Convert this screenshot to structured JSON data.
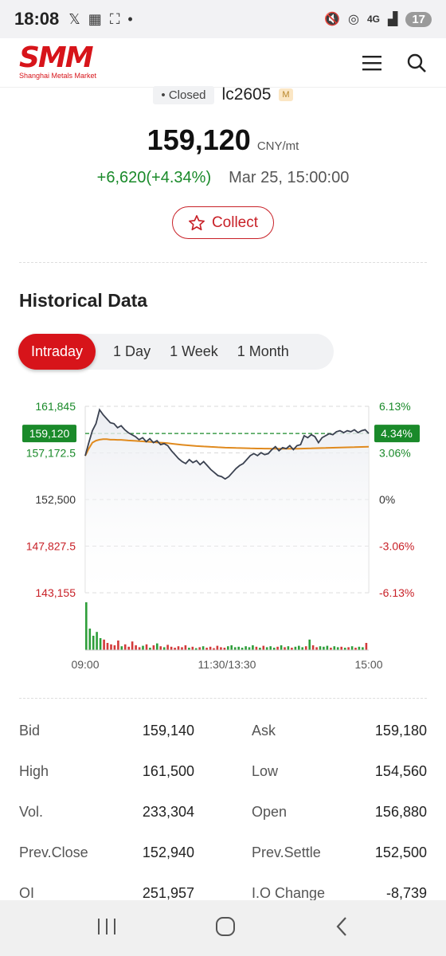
{
  "status": {
    "time": "18:08",
    "battery": "17",
    "network": "4G"
  },
  "brand": {
    "logo": "SMM",
    "tagline": "Shanghai Metals Market"
  },
  "quote": {
    "status": "Closed",
    "symbol": "lc2605",
    "tag": "M",
    "price": "159,120",
    "unit": "CNY/mt",
    "change": "+6,620(+4.34%)",
    "timestamp": "Mar 25, 15:00:00",
    "collect_label": "Collect"
  },
  "section": {
    "title": "Historical Data"
  },
  "tabs": [
    {
      "label": "Intraday",
      "active": true
    },
    {
      "label": "1 Day",
      "active": false
    },
    {
      "label": "1 Week",
      "active": false
    },
    {
      "label": "1 Month",
      "active": false
    }
  ],
  "chart_data": {
    "type": "line",
    "y_labels_left": [
      "161,845",
      "157,172.5",
      "152,500",
      "147,827.5",
      "143,155"
    ],
    "y_labels_right": [
      "6.13%",
      "3.06%",
      "0%",
      "-3.06%",
      "-6.13%"
    ],
    "current_price_label": "159,120",
    "current_pct_label": "4.34%",
    "x_labels": [
      "09:00",
      "11:30/13:30",
      "15:00"
    ],
    "ylim": [
      143155,
      161845
    ],
    "prev_settle": 152500,
    "current": 159120,
    "price_series": [
      156880,
      158200,
      159400,
      160100,
      161500,
      161000,
      160600,
      160200,
      160100,
      159700,
      159900,
      159500,
      159200,
      159000,
      158800,
      158500,
      158700,
      158300,
      158600,
      158200,
      158400,
      158000,
      158100,
      157900,
      157400,
      157000,
      156600,
      156300,
      156100,
      156500,
      156200,
      156400,
      156000,
      156300,
      155900,
      155500,
      155200,
      154900,
      154800,
      154560,
      154800,
      155200,
      155600,
      155900,
      156100,
      156500,
      156900,
      157100,
      156900,
      157200,
      157000,
      157100,
      157500,
      157800,
      157400,
      157700,
      157600,
      157900,
      157500,
      157900,
      158000,
      158900,
      158700,
      159000,
      158800,
      158200,
      158700,
      158900,
      159100,
      159000,
      159300,
      159400,
      159200,
      159400,
      159300,
      159500,
      159200,
      159400,
      159500,
      159120
    ],
    "avg_series": [
      156880,
      157600,
      158200,
      158400,
      158500,
      158550,
      158550,
      158500,
      158500,
      158480,
      158480,
      158450,
      158420,
      158400,
      158380,
      158350,
      158330,
      158300,
      158280,
      158250,
      158220,
      158200,
      158180,
      158150,
      158100,
      158060,
      158020,
      157980,
      157950,
      157920,
      157890,
      157860,
      157840,
      157820,
      157800,
      157780,
      157760,
      157740,
      157720,
      157700,
      157690,
      157680,
      157670,
      157660,
      157650,
      157640,
      157630,
      157620,
      157615,
      157610,
      157605,
      157600,
      157595,
      157590,
      157590,
      157590,
      157590,
      157590,
      157590,
      157595,
      157600,
      157610,
      157620,
      157630,
      157640,
      157650,
      157660,
      157670,
      157680,
      157690,
      157700,
      157710,
      157720,
      157730,
      157740,
      157750,
      157760,
      157770,
      157780,
      157790
    ],
    "volume_series": [
      1.0,
      0.45,
      0.3,
      0.38,
      0.25,
      0.22,
      0.15,
      0.12,
      0.1,
      0.2,
      0.08,
      0.12,
      0.07,
      0.18,
      0.1,
      0.06,
      0.09,
      0.12,
      0.05,
      0.1,
      0.14,
      0.08,
      0.06,
      0.11,
      0.07,
      0.05,
      0.08,
      0.06,
      0.1,
      0.05,
      0.07,
      0.04,
      0.06,
      0.08,
      0.05,
      0.07,
      0.04,
      0.09,
      0.06,
      0.05,
      0.08,
      0.1,
      0.06,
      0.07,
      0.05,
      0.08,
      0.06,
      0.1,
      0.07,
      0.05,
      0.09,
      0.06,
      0.08,
      0.05,
      0.07,
      0.1,
      0.06,
      0.08,
      0.05,
      0.07,
      0.09,
      0.06,
      0.08,
      0.22,
      0.1,
      0.06,
      0.08,
      0.07,
      0.09,
      0.05,
      0.08,
      0.06,
      0.07,
      0.05,
      0.06,
      0.08,
      0.05,
      0.07,
      0.06,
      0.15
    ]
  },
  "stats": [
    {
      "l1": "Bid",
      "v1": "159,140",
      "l2": "Ask",
      "v2": "159,180"
    },
    {
      "l1": "High",
      "v1": "161,500",
      "l2": "Low",
      "v2": "154,560"
    },
    {
      "l1": "Vol.",
      "v1": "233,304",
      "l2": "Open",
      "v2": "156,880"
    },
    {
      "l1": "Prev.Close",
      "v1": "152,940",
      "l2": "Prev.Settle",
      "v2": "152,500"
    },
    {
      "l1": "OI",
      "v1": "251,957",
      "l2": "I.O Change",
      "v2": "-8,739"
    }
  ],
  "colors": {
    "accent": "#d7141a",
    "up": "#1a8a2a",
    "down": "#c82027",
    "avg_line": "#e08a1e",
    "price_line": "#3a4150"
  }
}
